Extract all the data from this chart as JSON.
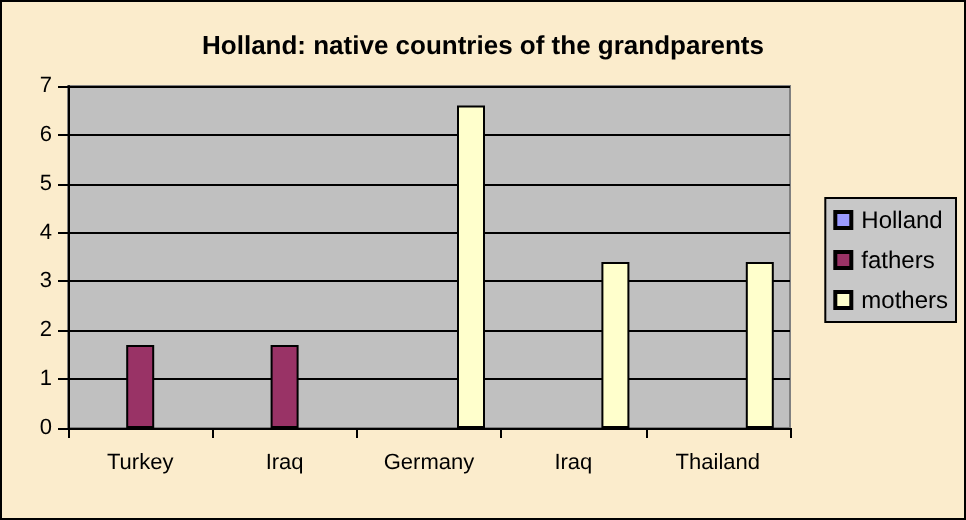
{
  "chart_data": {
    "type": "bar",
    "title": "Holland: native countries of the grandparents",
    "categories": [
      "Turkey",
      "Iraq",
      "Germany",
      "Iraq",
      "Thailand"
    ],
    "series": [
      {
        "name": "Holland",
        "color": "#9999ff",
        "values": [
          null,
          null,
          null,
          null,
          null
        ]
      },
      {
        "name": "fathers",
        "color": "#993366",
        "values": [
          1.7,
          1.7,
          null,
          null,
          null
        ]
      },
      {
        "name": "mothers",
        "color": "#ffffcc",
        "values": [
          null,
          null,
          6.6,
          3.4,
          3.4
        ]
      }
    ],
    "ylim": [
      0,
      7
    ],
    "yticks": [
      0,
      1,
      2,
      3,
      4,
      5,
      6,
      7
    ],
    "grid": "y",
    "legend": "right"
  }
}
